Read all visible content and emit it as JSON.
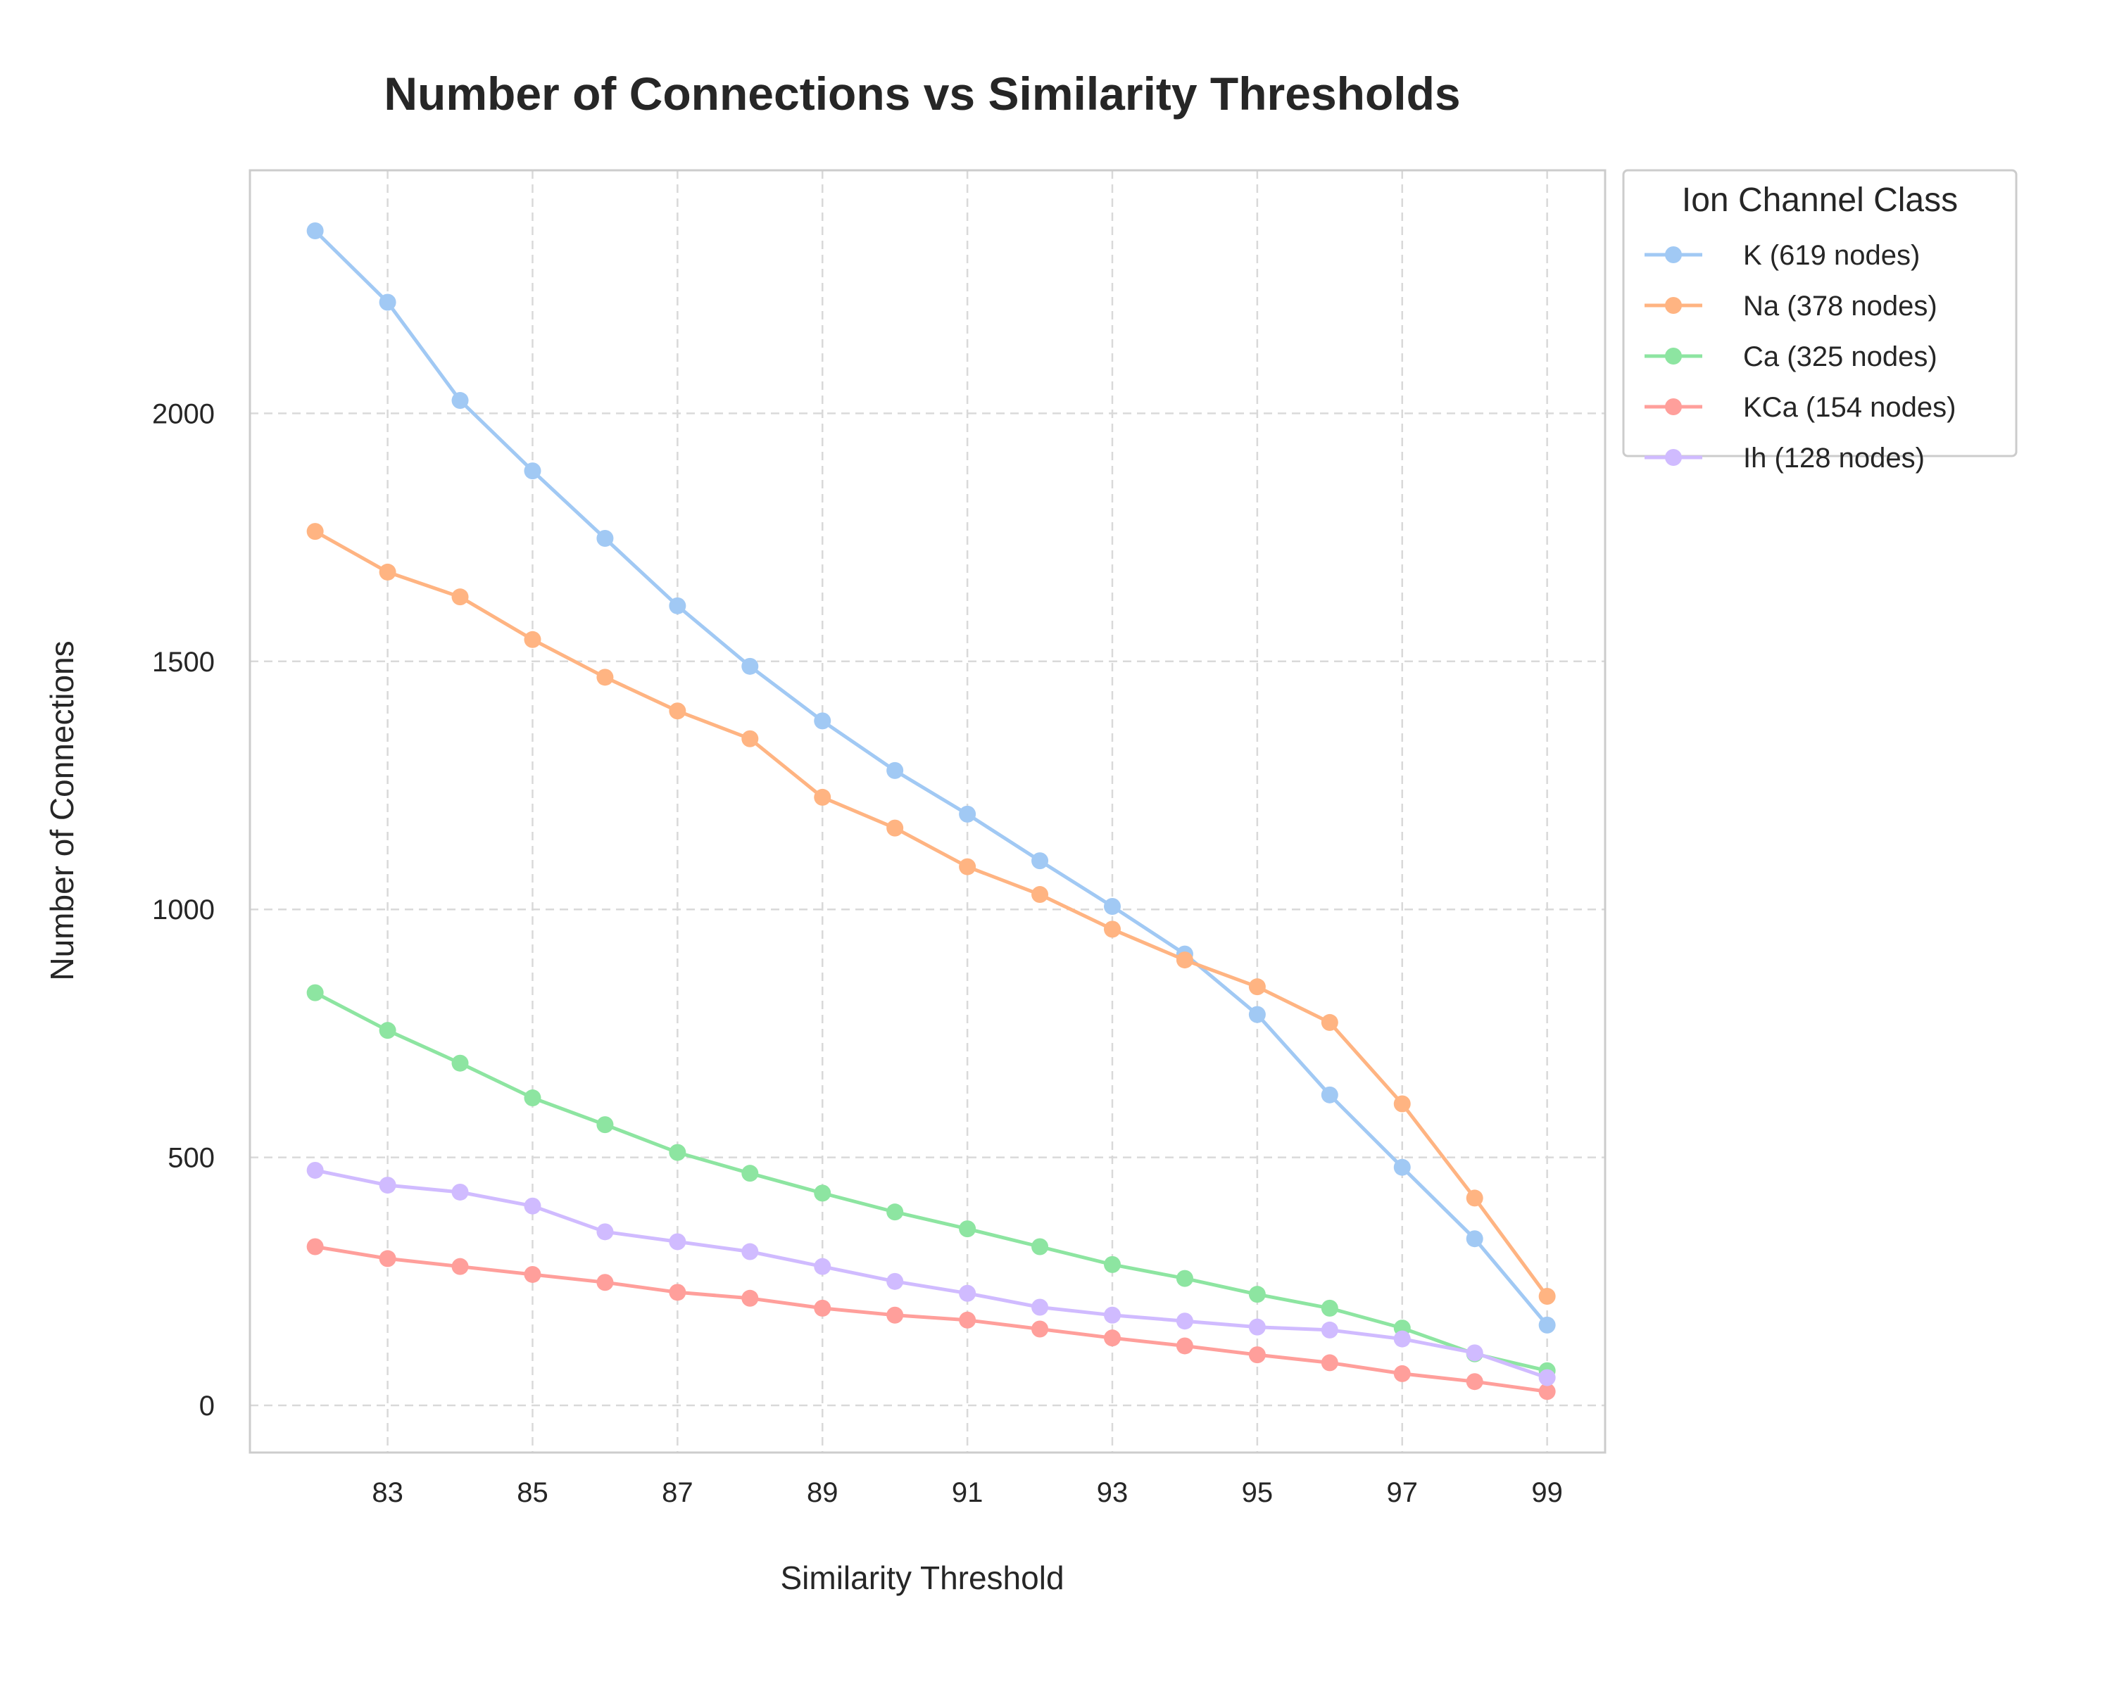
{
  "chart_data": {
    "type": "line",
    "title": "Number of Connections vs Similarity Thresholds",
    "xlabel": "Similarity Threshold",
    "ylabel": "Number of Connections",
    "x": [
      82,
      83,
      84,
      85,
      86,
      87,
      88,
      89,
      90,
      91,
      92,
      93,
      94,
      95,
      96,
      97,
      98,
      99
    ],
    "xticks": [
      "83",
      "85",
      "87",
      "89",
      "91",
      "93",
      "95",
      "97",
      "99"
    ],
    "yticks": [
      "0",
      "500",
      "1000",
      "1500",
      "2000"
    ],
    "xlim": [
      81.1,
      99.8
    ],
    "ylim": [
      -95,
      2490
    ],
    "grid": true,
    "grid_style": "dashed",
    "legend": {
      "title": "Ion Channel Class",
      "placement": "outside-top-right"
    },
    "series": [
      {
        "name": "K (619 nodes)",
        "color": "#a1c9f4",
        "values": [
          2368,
          2224,
          2026,
          1884,
          1748,
          1612,
          1490,
          1380,
          1280,
          1192,
          1098,
          1006,
          910,
          788,
          626,
          480,
          336,
          162
        ]
      },
      {
        "name": "Na (378 nodes)",
        "color": "#ffb482",
        "values": [
          1762,
          1680,
          1630,
          1544,
          1468,
          1400,
          1344,
          1226,
          1164,
          1086,
          1030,
          960,
          898,
          844,
          772,
          608,
          418,
          220
        ]
      },
      {
        "name": "Ca (325 nodes)",
        "color": "#8de5a1",
        "values": [
          832,
          756,
          690,
          620,
          566,
          510,
          468,
          428,
          390,
          356,
          320,
          284,
          256,
          224,
          196,
          156,
          104,
          70
        ]
      },
      {
        "name": "KCa (154 nodes)",
        "color": "#ff9f9b",
        "values": [
          320,
          296,
          280,
          264,
          248,
          228,
          216,
          196,
          182,
          172,
          154,
          136,
          120,
          102,
          86,
          64,
          48,
          28
        ]
      },
      {
        "name": "Ih (128 nodes)",
        "color": "#d0bbff",
        "values": [
          474,
          444,
          430,
          402,
          350,
          330,
          310,
          280,
          250,
          226,
          198,
          182,
          170,
          158,
          152,
          134,
          106,
          56
        ]
      }
    ]
  },
  "style": {
    "frame_color": "#cccccc",
    "grid_color": "#d9d9d9",
    "text_color": "#262626",
    "background": "#ffffff"
  }
}
